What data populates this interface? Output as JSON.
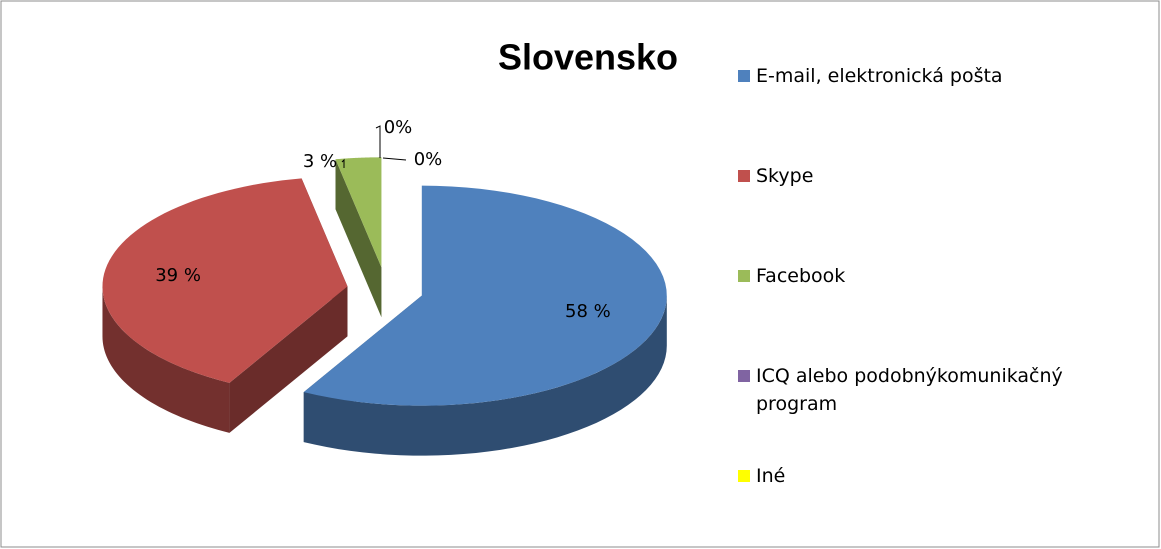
{
  "chart_data": {
    "type": "pie3d",
    "title": "Slovensko",
    "categories": [
      "E-mail, elektronická pošta",
      "Skype",
      "Facebook",
      "ICQ alebo podobnýkomunikačný program",
      "Iné"
    ],
    "values": [
      58,
      39,
      3,
      0,
      0
    ],
    "value_labels": [
      "58 %",
      "39 %",
      "3 %",
      "0%",
      "0%"
    ],
    "colors": [
      "#4f81bd",
      "#c0504d",
      "#9bbb59",
      "#8064a2",
      "#ffff00"
    ],
    "legend": "right"
  }
}
